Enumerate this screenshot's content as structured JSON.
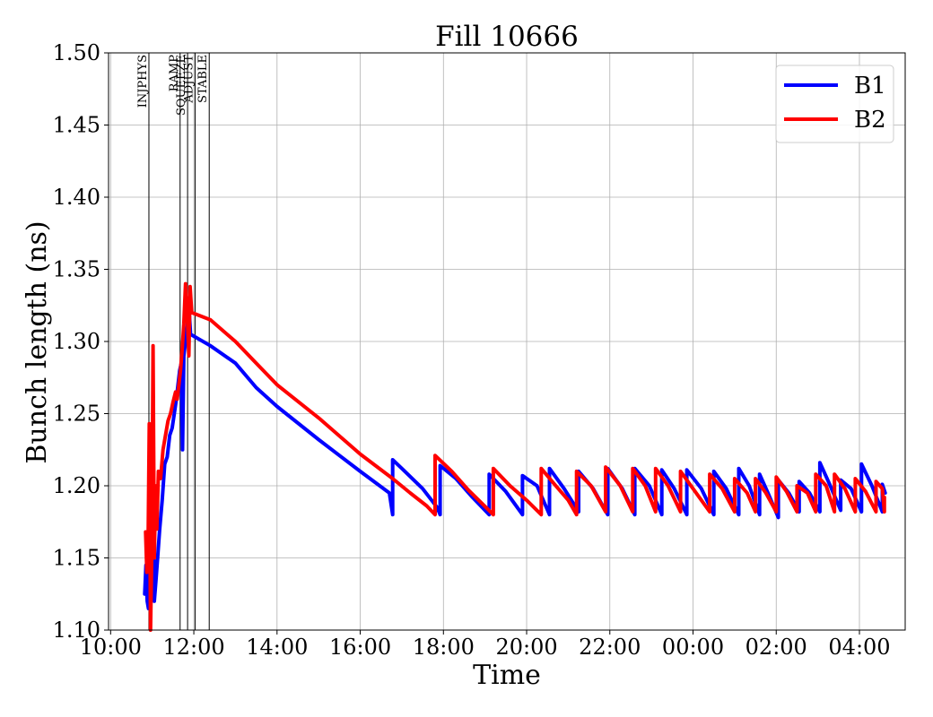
{
  "chart_data": {
    "type": "line",
    "title": "Fill 10666",
    "xlabel": "Time",
    "ylabel": "Bunch length (ns)",
    "x_unit": "hours since 10:00 (clock time, wraps past midnight)",
    "xlim": [
      -0.05,
      19.1
    ],
    "ylim": [
      1.1,
      1.5
    ],
    "xticks": [
      {
        "v": 0,
        "label": "10:00"
      },
      {
        "v": 2,
        "label": "12:00"
      },
      {
        "v": 4,
        "label": "14:00"
      },
      {
        "v": 6,
        "label": "16:00"
      },
      {
        "v": 8,
        "label": "18:00"
      },
      {
        "v": 10,
        "label": "20:00"
      },
      {
        "v": 12,
        "label": "22:00"
      },
      {
        "v": 14,
        "label": "00:00"
      },
      {
        "v": 16,
        "label": "02:00"
      },
      {
        "v": 18,
        "label": "04:00"
      }
    ],
    "yticks": [
      {
        "v": 1.1,
        "label": "1.10"
      },
      {
        "v": 1.15,
        "label": "1.15"
      },
      {
        "v": 1.2,
        "label": "1.20"
      },
      {
        "v": 1.25,
        "label": "1.25"
      },
      {
        "v": 1.3,
        "label": "1.30"
      },
      {
        "v": 1.35,
        "label": "1.35"
      },
      {
        "v": 1.4,
        "label": "1.40"
      },
      {
        "v": 1.45,
        "label": "1.45"
      },
      {
        "v": 1.5,
        "label": "1.50"
      }
    ],
    "grid": true,
    "legend": "top-right",
    "phase_markers": [
      {
        "x": 0.92,
        "label": "INJPHYS"
      },
      {
        "x": 1.67,
        "label": "RAMP"
      },
      {
        "x": 1.85,
        "label": "SQUEEZE"
      },
      {
        "x": 2.03,
        "label": "ADJUST"
      },
      {
        "x": 2.37,
        "label": "STABLE"
      }
    ],
    "series": [
      {
        "name": "B1",
        "color": "#0000ff",
        "points": [
          [
            0.82,
            1.125
          ],
          [
            0.85,
            1.145
          ],
          [
            0.88,
            1.12
          ],
          [
            0.91,
            1.115
          ],
          [
            0.95,
            1.16
          ],
          [
            0.99,
            1.14
          ],
          [
            1.03,
            1.17
          ],
          [
            1.05,
            1.12
          ],
          [
            1.09,
            1.135
          ],
          [
            1.13,
            1.15
          ],
          [
            1.18,
            1.17
          ],
          [
            1.24,
            1.19
          ],
          [
            1.3,
            1.215
          ],
          [
            1.36,
            1.22
          ],
          [
            1.42,
            1.235
          ],
          [
            1.48,
            1.24
          ],
          [
            1.53,
            1.25
          ],
          [
            1.58,
            1.26
          ],
          [
            1.62,
            1.27
          ],
          [
            1.66,
            1.28
          ],
          [
            1.7,
            1.285
          ],
          [
            1.73,
            1.225
          ],
          [
            1.76,
            1.29
          ],
          [
            1.8,
            1.3
          ],
          [
            1.84,
            1.31
          ],
          [
            1.87,
            1.33
          ],
          [
            1.92,
            1.305
          ],
          [
            2.4,
            1.297
          ],
          [
            3.0,
            1.285
          ],
          [
            3.5,
            1.268
          ],
          [
            4.0,
            1.255
          ],
          [
            5.0,
            1.232
          ],
          [
            6.0,
            1.21
          ],
          [
            6.7,
            1.195
          ],
          [
            6.78,
            1.18
          ],
          [
            6.78,
            1.218
          ],
          [
            7.0,
            1.212
          ],
          [
            7.5,
            1.198
          ],
          [
            7.85,
            1.185
          ],
          [
            7.92,
            1.18
          ],
          [
            7.92,
            1.214
          ],
          [
            8.3,
            1.205
          ],
          [
            8.7,
            1.192
          ],
          [
            9.1,
            1.18
          ],
          [
            9.1,
            1.208
          ],
          [
            9.5,
            1.196
          ],
          [
            9.9,
            1.18
          ],
          [
            9.9,
            1.207
          ],
          [
            10.25,
            1.2
          ],
          [
            10.55,
            1.18
          ],
          [
            10.55,
            1.212
          ],
          [
            10.9,
            1.198
          ],
          [
            11.25,
            1.182
          ],
          [
            11.25,
            1.21
          ],
          [
            11.6,
            1.198
          ],
          [
            11.95,
            1.18
          ],
          [
            11.95,
            1.212
          ],
          [
            12.3,
            1.198
          ],
          [
            12.6,
            1.18
          ],
          [
            12.6,
            1.212
          ],
          [
            12.95,
            1.2
          ],
          [
            13.25,
            1.18
          ],
          [
            13.25,
            1.211
          ],
          [
            13.55,
            1.198
          ],
          [
            13.85,
            1.18
          ],
          [
            13.85,
            1.211
          ],
          [
            14.2,
            1.198
          ],
          [
            14.5,
            1.18
          ],
          [
            14.5,
            1.21
          ],
          [
            14.8,
            1.198
          ],
          [
            15.1,
            1.18
          ],
          [
            15.1,
            1.212
          ],
          [
            15.35,
            1.2
          ],
          [
            15.6,
            1.18
          ],
          [
            15.6,
            1.208
          ],
          [
            15.8,
            1.195
          ],
          [
            16.05,
            1.178
          ],
          [
            16.05,
            1.204
          ],
          [
            16.3,
            1.195
          ],
          [
            16.55,
            1.182
          ],
          [
            16.55,
            1.203
          ],
          [
            16.8,
            1.195
          ],
          [
            17.05,
            1.182
          ],
          [
            17.05,
            1.216
          ],
          [
            17.3,
            1.2
          ],
          [
            17.55,
            1.183
          ],
          [
            17.55,
            1.204
          ],
          [
            17.8,
            1.198
          ],
          [
            18.05,
            1.182
          ],
          [
            18.05,
            1.215
          ],
          [
            18.3,
            1.2
          ],
          [
            18.55,
            1.182
          ],
          [
            18.55,
            1.201
          ],
          [
            18.62,
            1.195
          ]
        ]
      },
      {
        "name": "B2",
        "color": "#ff0000",
        "points": [
          [
            0.84,
            1.168
          ],
          [
            0.87,
            1.14
          ],
          [
            0.9,
            1.16
          ],
          [
            0.93,
            1.243
          ],
          [
            0.96,
            1.1
          ],
          [
            0.99,
            1.155
          ],
          [
            1.02,
            1.297
          ],
          [
            1.05,
            1.15
          ],
          [
            1.08,
            1.2
          ],
          [
            1.11,
            1.17
          ],
          [
            1.15,
            1.21
          ],
          [
            1.2,
            1.205
          ],
          [
            1.26,
            1.225
          ],
          [
            1.32,
            1.235
          ],
          [
            1.38,
            1.245
          ],
          [
            1.44,
            1.25
          ],
          [
            1.5,
            1.258
          ],
          [
            1.56,
            1.265
          ],
          [
            1.6,
            1.26
          ],
          [
            1.64,
            1.27
          ],
          [
            1.68,
            1.28
          ],
          [
            1.72,
            1.295
          ],
          [
            1.76,
            1.312
          ],
          [
            1.8,
            1.34
          ],
          [
            1.84,
            1.32
          ],
          [
            1.88,
            1.29
          ],
          [
            1.91,
            1.338
          ],
          [
            1.95,
            1.32
          ],
          [
            2.4,
            1.315
          ],
          [
            3.0,
            1.3
          ],
          [
            3.5,
            1.285
          ],
          [
            4.0,
            1.27
          ],
          [
            5.0,
            1.247
          ],
          [
            6.0,
            1.222
          ],
          [
            6.78,
            1.205
          ],
          [
            7.2,
            1.195
          ],
          [
            7.6,
            1.186
          ],
          [
            7.8,
            1.18
          ],
          [
            7.8,
            1.221
          ],
          [
            8.2,
            1.21
          ],
          [
            8.6,
            1.197
          ],
          [
            9.2,
            1.18
          ],
          [
            9.2,
            1.212
          ],
          [
            9.6,
            1.2
          ],
          [
            10.0,
            1.19
          ],
          [
            10.35,
            1.18
          ],
          [
            10.35,
            1.212
          ],
          [
            10.7,
            1.2
          ],
          [
            11.0,
            1.19
          ],
          [
            11.2,
            1.18
          ],
          [
            11.2,
            1.21
          ],
          [
            11.55,
            1.2
          ],
          [
            11.9,
            1.182
          ],
          [
            11.9,
            1.213
          ],
          [
            12.25,
            1.2
          ],
          [
            12.55,
            1.182
          ],
          [
            12.55,
            1.212
          ],
          [
            12.85,
            1.2
          ],
          [
            13.1,
            1.182
          ],
          [
            13.1,
            1.212
          ],
          [
            13.4,
            1.2
          ],
          [
            13.7,
            1.182
          ],
          [
            13.7,
            1.21
          ],
          [
            14.0,
            1.198
          ],
          [
            14.4,
            1.182
          ],
          [
            14.4,
            1.208
          ],
          [
            14.7,
            1.198
          ],
          [
            15.0,
            1.182
          ],
          [
            15.0,
            1.205
          ],
          [
            15.3,
            1.195
          ],
          [
            15.5,
            1.182
          ],
          [
            15.5,
            1.205
          ],
          [
            15.75,
            1.195
          ],
          [
            16.0,
            1.182
          ],
          [
            16.0,
            1.206
          ],
          [
            16.25,
            1.196
          ],
          [
            16.5,
            1.182
          ],
          [
            16.5,
            1.2
          ],
          [
            16.75,
            1.195
          ],
          [
            16.95,
            1.182
          ],
          [
            16.95,
            1.208
          ],
          [
            17.2,
            1.2
          ],
          [
            17.4,
            1.182
          ],
          [
            17.4,
            1.208
          ],
          [
            17.65,
            1.198
          ],
          [
            17.9,
            1.182
          ],
          [
            17.9,
            1.205
          ],
          [
            18.15,
            1.196
          ],
          [
            18.4,
            1.182
          ],
          [
            18.4,
            1.203
          ],
          [
            18.55,
            1.198
          ],
          [
            18.6,
            1.182
          ],
          [
            18.6,
            1.192
          ]
        ]
      }
    ]
  }
}
